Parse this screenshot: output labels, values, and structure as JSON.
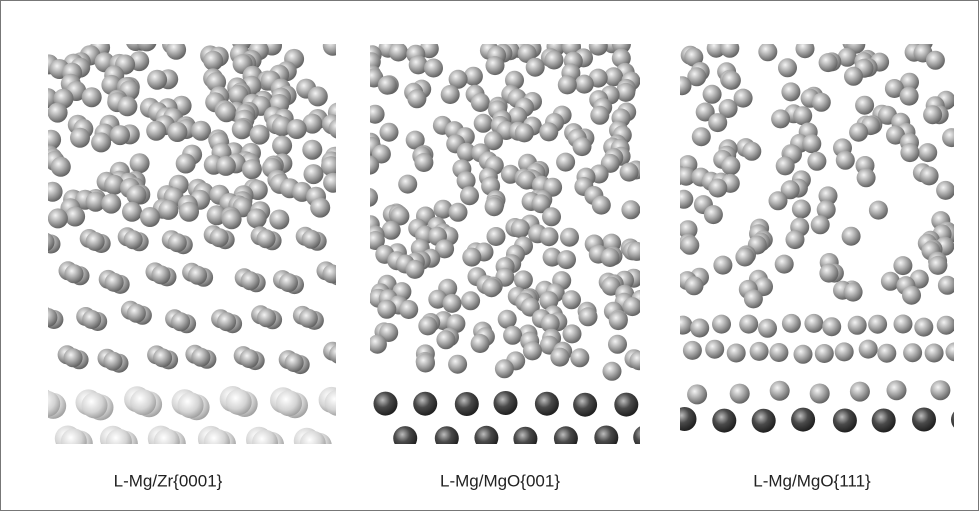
{
  "panels": [
    {
      "label": "L-Mg/Zr{0001}"
    },
    {
      "label": "L-Mg/MgO{001}"
    },
    {
      "label": "L-Mg/MgO{111}"
    }
  ]
}
